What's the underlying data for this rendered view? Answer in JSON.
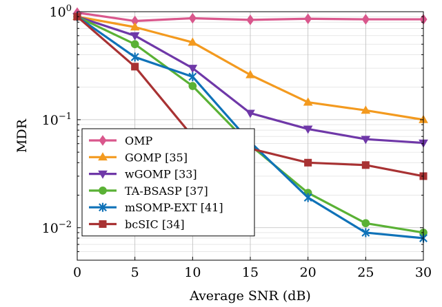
{
  "chart_data": {
    "type": "line",
    "xlabel": "Average SNR (dB)",
    "ylabel": "MDR",
    "x": [
      0,
      5,
      10,
      15,
      20,
      25,
      30
    ],
    "xlim": [
      0,
      30
    ],
    "ylim": [
      0.005,
      1
    ],
    "yscale": "log",
    "xticks": [
      0,
      5,
      10,
      15,
      20,
      25,
      30
    ],
    "yticks": [
      {
        "value": 0.01,
        "base": "10",
        "exp": "−2"
      },
      {
        "value": 0.1,
        "base": "10",
        "exp": "−1"
      },
      {
        "value": 1,
        "base": "10",
        "exp": "0"
      }
    ],
    "grid": true,
    "legend_position": "bottom-left",
    "series": [
      {
        "name": "OMP",
        "color": "#d9578c",
        "marker": "diamond",
        "values": [
          0.98,
          0.82,
          0.87,
          0.84,
          0.86,
          0.85,
          0.85
        ]
      },
      {
        "name": "GOMP [35]",
        "color": "#f39a1f",
        "marker": "triangle-up",
        "values": [
          0.9,
          0.72,
          0.52,
          0.26,
          0.145,
          0.122,
          0.1
        ]
      },
      {
        "name": "wGOMP [33]",
        "color": "#6f38a8",
        "marker": "triangle-down",
        "values": [
          0.9,
          0.6,
          0.3,
          0.115,
          0.082,
          0.066,
          0.061
        ]
      },
      {
        "name": "TA-BSASP [37]",
        "color": "#5ab135",
        "marker": "circle",
        "values": [
          0.9,
          0.5,
          0.205,
          0.058,
          0.021,
          0.011,
          0.009
        ]
      },
      {
        "name": "mSOMP-EXT [41]",
        "color": "#0f72b8",
        "marker": "star",
        "values": [
          0.9,
          0.38,
          0.25,
          0.062,
          0.019,
          0.009,
          0.008
        ]
      },
      {
        "name": "bcSIC [34]",
        "color": "#a83233",
        "marker": "square",
        "values": [
          0.9,
          0.31,
          0.07,
          0.054,
          0.04,
          0.038,
          0.03
        ]
      }
    ]
  }
}
